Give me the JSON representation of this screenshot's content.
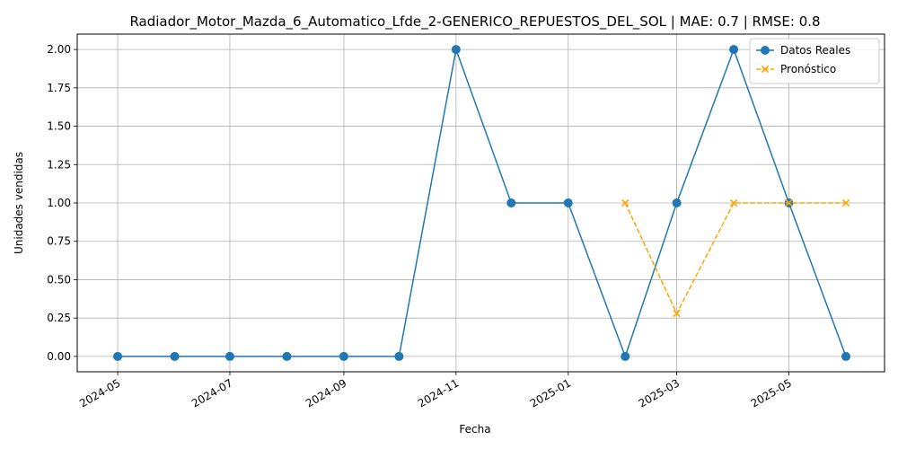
{
  "chart_data": {
    "type": "line",
    "title": "Radiador_Motor_Mazda_6_Automatico_Lfde_2-GENERICO_REPUESTOS_DEL_SOL | MAE: 0.7 | RMSE: 0.8",
    "xlabel": "Fecha",
    "ylabel": "Unidades vendidas",
    "xlim": [
      "2024-04-09",
      "2025-06-22"
    ],
    "ylim": [
      -0.1,
      2.1
    ],
    "grid": true,
    "legend_position": "top-right",
    "x_ticks": [
      "2024-05",
      "2024-07",
      "2024-09",
      "2024-11",
      "2025-01",
      "2025-03",
      "2025-05"
    ],
    "y_ticks": [
      "0.00",
      "0.25",
      "0.50",
      "0.75",
      "1.00",
      "1.25",
      "1.50",
      "1.75",
      "2.00"
    ],
    "series": [
      {
        "name": "Datos Reales",
        "color": "#1f77b4",
        "line_style": "solid",
        "marker": "circle",
        "points": [
          {
            "x": "2024-05-01",
            "y": 0
          },
          {
            "x": "2024-06-01",
            "y": 0
          },
          {
            "x": "2024-07-01",
            "y": 0
          },
          {
            "x": "2024-08-01",
            "y": 0
          },
          {
            "x": "2024-09-01",
            "y": 0
          },
          {
            "x": "2024-10-01",
            "y": 0
          },
          {
            "x": "2024-11-01",
            "y": 2
          },
          {
            "x": "2024-12-01",
            "y": 1
          },
          {
            "x": "2025-01-01",
            "y": 1
          },
          {
            "x": "2025-02-01",
            "y": 0
          },
          {
            "x": "2025-03-01",
            "y": 1
          },
          {
            "x": "2025-04-01",
            "y": 2
          },
          {
            "x": "2025-05-01",
            "y": 1
          },
          {
            "x": "2025-06-01",
            "y": 0
          }
        ]
      },
      {
        "name": "Pronóstico",
        "color": "#ffa500",
        "line_style": "dashed",
        "marker": "x",
        "points": [
          {
            "x": "2025-02-01",
            "y": 1
          },
          {
            "x": "2025-03-01",
            "y": 0.28
          },
          {
            "x": "2025-04-01",
            "y": 1
          },
          {
            "x": "2025-05-01",
            "y": 1
          },
          {
            "x": "2025-06-01",
            "y": 1
          }
        ]
      }
    ]
  }
}
